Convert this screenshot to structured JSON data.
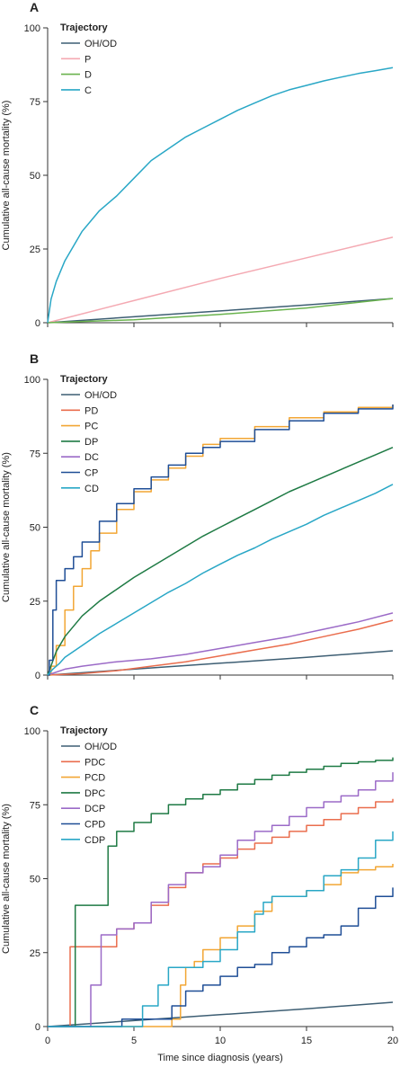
{
  "chart_data": [
    {
      "type": "line",
      "panel_label": "A",
      "xlabel": "",
      "ylabel": "Cumulative all-cause mortality (%)",
      "xlim": [
        0,
        20
      ],
      "ylim": [
        0,
        100
      ],
      "xticks": [
        0,
        5,
        10,
        15,
        20
      ],
      "xtick_labels": [],
      "yticks": [
        0,
        25,
        50,
        75,
        100
      ],
      "ytick_labels": [
        "0",
        "25",
        "50",
        "75",
        "100"
      ],
      "grid": false,
      "legend_title": "Trajectory",
      "legend_position": "top-left",
      "series": [
        {
          "name": "OH/OD",
          "color": "#3d5e73",
          "step": false,
          "x": [
            0,
            5,
            10,
            15,
            20
          ],
          "y": [
            0,
            2,
            4,
            6,
            8.2
          ]
        },
        {
          "name": "P",
          "color": "#f4a9b2",
          "step": false,
          "x": [
            0,
            5,
            10,
            15,
            20
          ],
          "y": [
            0,
            7.5,
            15,
            22,
            29
          ]
        },
        {
          "name": "D",
          "color": "#6ab34e",
          "step": false,
          "x": [
            0,
            5,
            10,
            15,
            20
          ],
          "y": [
            0,
            1,
            2.8,
            5,
            8.2
          ]
        },
        {
          "name": "C",
          "color": "#29a7c6",
          "step": false,
          "x": [
            0,
            0.2,
            0.5,
            1,
            2,
            3,
            4,
            5,
            6,
            7,
            8,
            9,
            10,
            11,
            12,
            13,
            14,
            15,
            16,
            17,
            18,
            19,
            20
          ],
          "y": [
            0,
            8,
            14,
            21,
            31,
            38,
            43,
            49,
            55,
            59,
            63,
            66,
            69,
            72,
            74.5,
            77,
            79,
            80.5,
            82,
            83.3,
            84.5,
            85.5,
            86.5
          ]
        }
      ]
    },
    {
      "type": "line",
      "panel_label": "B",
      "xlabel": "",
      "ylabel": "Cumulative all-cause mortality (%)",
      "xlim": [
        0,
        20
      ],
      "ylim": [
        0,
        100
      ],
      "xticks": [
        0,
        5,
        10,
        15,
        20
      ],
      "xtick_labels": [],
      "yticks": [
        0,
        25,
        50,
        75,
        100
      ],
      "ytick_labels": [
        "0",
        "25",
        "50",
        "75",
        "100"
      ],
      "grid": false,
      "legend_title": "Trajectory",
      "legend_position": "top-left",
      "series": [
        {
          "name": "OH/OD",
          "color": "#3d5e73",
          "step": false,
          "x": [
            0,
            5,
            10,
            15,
            20
          ],
          "y": [
            0,
            2,
            4,
            6,
            8.2
          ]
        },
        {
          "name": "PD",
          "color": "#ea6d4d",
          "step": false,
          "x": [
            0,
            2,
            4,
            6,
            8,
            10,
            12,
            14,
            16,
            18,
            20
          ],
          "y": [
            0,
            0.5,
            1.5,
            3,
            4.5,
            6.5,
            8.5,
            10.5,
            13,
            15.5,
            18.5
          ]
        },
        {
          "name": "PC",
          "color": "#f2a634",
          "step": true,
          "x": [
            0,
            0.2,
            0.5,
            1,
            1.5,
            2,
            2.5,
            3,
            4,
            5,
            6,
            7,
            8,
            9,
            10,
            12,
            14,
            16,
            18,
            20
          ],
          "y": [
            0,
            3,
            10,
            22,
            30,
            36,
            42,
            48,
            56,
            62,
            66,
            70,
            74,
            78,
            80,
            84,
            87,
            89,
            90.5,
            91.5
          ]
        },
        {
          "name": "DP",
          "color": "#1e7a44",
          "step": false,
          "x": [
            0,
            0.5,
            1,
            2,
            3,
            4,
            5,
            6,
            7,
            8,
            9,
            10,
            11,
            12,
            13,
            14,
            15,
            16,
            17,
            18,
            19,
            20
          ],
          "y": [
            0,
            8,
            13,
            20,
            25,
            29,
            33,
            36.5,
            40,
            43.5,
            47,
            50,
            53,
            56,
            59,
            62,
            64.5,
            67,
            69.5,
            72,
            74.5,
            77
          ]
        },
        {
          "name": "DC",
          "color": "#9b6ac7",
          "step": false,
          "x": [
            0,
            1,
            2,
            4,
            6,
            8,
            10,
            12,
            14,
            16,
            18,
            20
          ],
          "y": [
            0,
            2,
            3,
            4.5,
            5.5,
            7,
            9,
            11,
            13,
            15.5,
            18,
            21
          ]
        },
        {
          "name": "CP",
          "color": "#1f4e96",
          "step": true,
          "x": [
            0,
            0.1,
            0.3,
            0.5,
            1,
            1.5,
            2,
            3,
            4,
            5,
            6,
            7,
            8,
            9,
            10,
            12,
            14,
            16,
            18,
            20
          ],
          "y": [
            0,
            5,
            22,
            32,
            36,
            40,
            45,
            52,
            58,
            63,
            67,
            71,
            75,
            77,
            79,
            83,
            86,
            88.5,
            90,
            91.5
          ]
        },
        {
          "name": "CD",
          "color": "#29a7c6",
          "step": false,
          "x": [
            0,
            0.3,
            0.7,
            1,
            2,
            3,
            4,
            5,
            6,
            7,
            8,
            9,
            10,
            11,
            12,
            13,
            14,
            15,
            16,
            17,
            18,
            19,
            20
          ],
          "y": [
            0,
            2,
            4,
            6,
            10,
            14,
            17.5,
            21,
            24.5,
            28,
            31,
            34.5,
            37.5,
            40.5,
            43,
            46,
            48.5,
            51,
            54,
            56.5,
            59,
            61.5,
            64.5
          ]
        }
      ]
    },
    {
      "type": "line",
      "panel_label": "C",
      "xlabel": "Time since diagnosis (years)",
      "ylabel": "Cumulative all-cause mortality (%)",
      "xlim": [
        0,
        20
      ],
      "ylim": [
        0,
        100
      ],
      "xticks": [
        0,
        5,
        10,
        15,
        20
      ],
      "xtick_labels": [
        "0",
        "5",
        "10",
        "15",
        "20"
      ],
      "yticks": [
        0,
        25,
        50,
        75,
        100
      ],
      "ytick_labels": [
        "0",
        "25",
        "50",
        "75",
        "100"
      ],
      "grid": false,
      "legend_title": "Trajectory",
      "legend_position": "top-left",
      "series": [
        {
          "name": "OH/OD",
          "color": "#3d5e73",
          "step": false,
          "x": [
            0,
            5,
            10,
            15,
            20
          ],
          "y": [
            0,
            2,
            4,
            6,
            8.2
          ]
        },
        {
          "name": "PDC",
          "color": "#ea6d4d",
          "step": true,
          "x": [
            0,
            1.3,
            2.2,
            4,
            5,
            6,
            7,
            8,
            9,
            10,
            11,
            12,
            13,
            14,
            15,
            16,
            17,
            18,
            19,
            20
          ],
          "y": [
            0,
            27,
            27,
            33,
            35,
            41,
            47,
            52,
            55,
            57,
            60,
            62,
            64,
            66,
            68,
            70,
            72,
            74,
            76,
            77
          ]
        },
        {
          "name": "PCD",
          "color": "#f2a634",
          "step": true,
          "x": [
            0,
            7.2,
            7.7,
            8,
            8.5,
            9,
            10,
            11,
            12,
            13,
            14,
            15,
            16,
            17,
            18,
            19,
            20
          ],
          "y": [
            0,
            2.5,
            14,
            20,
            22,
            26,
            30,
            34,
            39,
            44,
            44,
            46,
            48,
            52,
            53,
            54,
            55
          ]
        },
        {
          "name": "DPC",
          "color": "#1e7a44",
          "step": true,
          "x": [
            0,
            1.6,
            3.1,
            3.5,
            4,
            5,
            6,
            7,
            8,
            9,
            10,
            11,
            12,
            13,
            14,
            15,
            16,
            17,
            18,
            19,
            20
          ],
          "y": [
            0,
            41,
            41,
            61,
            66,
            69,
            72,
            75,
            77,
            78.5,
            80,
            82,
            83.5,
            85,
            86,
            87,
            88,
            89,
            89.5,
            90,
            91
          ]
        },
        {
          "name": "DCP",
          "color": "#9b6ac7",
          "step": true,
          "x": [
            0,
            2.5,
            3.1,
            4,
            5,
            6,
            7,
            8,
            9,
            10,
            11,
            12,
            13,
            14,
            15,
            16,
            17,
            18,
            19,
            20
          ],
          "y": [
            0,
            14,
            31,
            33,
            35,
            42,
            48,
            52,
            54,
            58,
            63,
            66,
            68,
            71,
            74,
            76,
            78,
            80,
            83,
            86
          ]
        },
        {
          "name": "CPD",
          "color": "#1f4e96",
          "step": true,
          "x": [
            0,
            4.3,
            6.5,
            7.2,
            8,
            9,
            10,
            11,
            12,
            13,
            14,
            15,
            16,
            17,
            18,
            19,
            20
          ],
          "y": [
            0,
            2.5,
            2.5,
            7,
            12,
            14,
            17,
            20,
            21,
            25,
            27,
            30,
            31,
            34,
            40,
            44,
            47
          ]
        },
        {
          "name": "CDP",
          "color": "#29a7c6",
          "step": true,
          "x": [
            0,
            4,
            5.5,
            6.4,
            7,
            8,
            9,
            10,
            11,
            12,
            12.5,
            13,
            14,
            15,
            16,
            17,
            18,
            19,
            20
          ],
          "y": [
            0,
            0,
            7,
            14,
            20,
            20,
            22,
            26,
            32,
            38,
            42,
            44,
            44,
            46,
            51,
            53,
            57,
            63,
            66
          ]
        }
      ]
    }
  ]
}
